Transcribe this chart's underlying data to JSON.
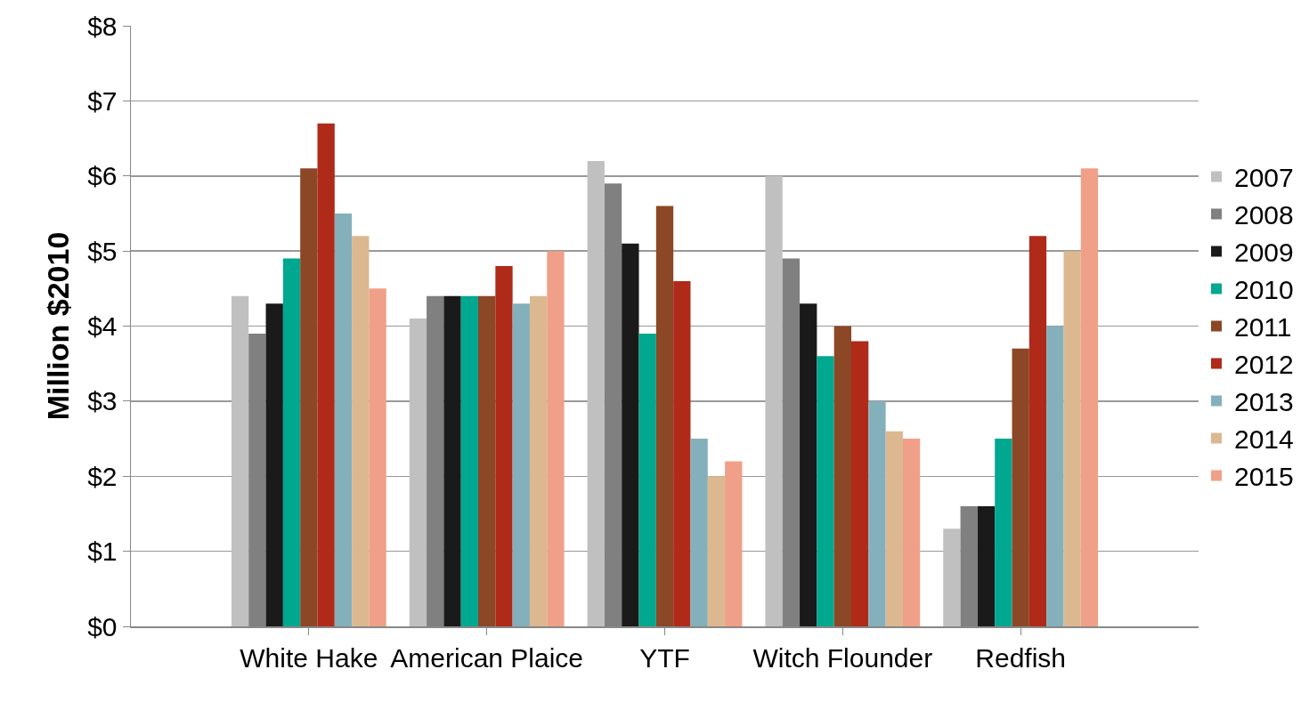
{
  "chart_data": {
    "type": "bar",
    "ylabel": "Million $2010",
    "categories": [
      "White Hake",
      "American Plaice",
      "YTF",
      "Witch Flounder",
      "Redfish"
    ],
    "series": [
      {
        "name": "2007",
        "color": "#c0c0c0",
        "values": [
          4.4,
          4.1,
          6.2,
          6.0,
          1.3
        ]
      },
      {
        "name": "2008",
        "color": "#808080",
        "values": [
          3.9,
          4.4,
          5.9,
          4.9,
          1.6
        ]
      },
      {
        "name": "2009",
        "color": "#1a1a1a",
        "values": [
          4.3,
          4.4,
          5.1,
          4.3,
          1.6
        ]
      },
      {
        "name": "2010",
        "color": "#00a88f",
        "values": [
          4.9,
          4.4,
          3.9,
          3.6,
          2.5
        ]
      },
      {
        "name": "2011",
        "color": "#8b4726",
        "values": [
          6.1,
          4.4,
          5.6,
          4.0,
          3.7
        ]
      },
      {
        "name": "2012",
        "color": "#b02a1a",
        "values": [
          6.7,
          4.8,
          4.6,
          3.8,
          5.2
        ]
      },
      {
        "name": "2013",
        "color": "#84b0bb",
        "values": [
          5.5,
          4.3,
          2.5,
          3.0,
          4.0
        ]
      },
      {
        "name": "2014",
        "color": "#dbb890",
        "values": [
          5.2,
          4.4,
          2.0,
          2.6,
          5.0
        ]
      },
      {
        "name": "2015",
        "color": "#f0a088",
        "values": [
          4.5,
          5.0,
          2.2,
          2.5,
          6.1
        ]
      }
    ],
    "ylim": [
      0,
      8
    ],
    "yticks": [
      {
        "value": 0,
        "label": "$0"
      },
      {
        "value": 1,
        "label": "$1"
      },
      {
        "value": 2,
        "label": "$2"
      },
      {
        "value": 3,
        "label": "$3"
      },
      {
        "value": 4,
        "label": "$4"
      },
      {
        "value": 5,
        "label": "$5"
      },
      {
        "value": 6,
        "label": "$6"
      },
      {
        "value": 7,
        "label": "$7"
      },
      {
        "value": 8,
        "label": "$8"
      }
    ],
    "grid": "y",
    "legend": "right"
  }
}
